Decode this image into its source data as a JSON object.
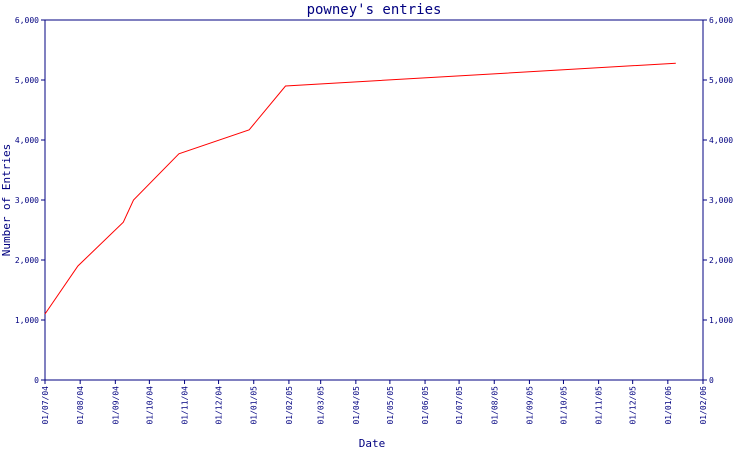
{
  "chart_data": {
    "type": "line",
    "title": "powney's entries",
    "x_label": "Date",
    "y_label": "Number of Entries",
    "x": [
      "01/07/04",
      "30/07/04",
      "08/09/04",
      "17/09/04",
      "27/10/04",
      "28/12/04",
      "29/01/05",
      "08/01/06"
    ],
    "series": [
      {
        "name": "entries",
        "color": "#ff0000",
        "values": [
          1100,
          1900,
          2630,
          3000,
          3770,
          4170,
          4900,
          5280
        ]
      }
    ],
    "xlim": [
      "01/07/04",
      "01/02/06"
    ],
    "xticks": [
      "01/07/04",
      "01/08/04",
      "01/09/04",
      "01/10/04",
      "01/11/04",
      "01/12/04",
      "01/01/05",
      "01/02/05",
      "01/03/05",
      "01/04/05",
      "01/05/05",
      "01/06/05",
      "01/07/05",
      "01/08/05",
      "01/09/05",
      "01/10/05",
      "01/11/05",
      "01/12/05",
      "01/01/06",
      "01/02/06"
    ],
    "ylim": [
      0,
      6000
    ],
    "yticks": [
      0,
      {
        "value": 1000,
        "label": "1,000"
      },
      {
        "value": 2000,
        "label": "2,000"
      },
      {
        "value": 3000,
        "label": "3,000"
      },
      {
        "value": 4000,
        "label": "4,000"
      },
      {
        "value": 5000,
        "label": "5,000"
      },
      {
        "value": 6000,
        "label": "6,000"
      }
    ],
    "y2lim": [
      0,
      6000
    ],
    "y2ticks": [
      0,
      {
        "value": 1000,
        "label": "1,000"
      },
      {
        "value": 2000,
        "label": "2,000"
      },
      {
        "value": 3000,
        "label": "3,000"
      },
      {
        "value": 4000,
        "label": "4,000"
      },
      {
        "value": 5000,
        "label": "5,000"
      },
      {
        "value": 6000,
        "label": "6,000"
      }
    ],
    "axis_color": "#000080"
  }
}
